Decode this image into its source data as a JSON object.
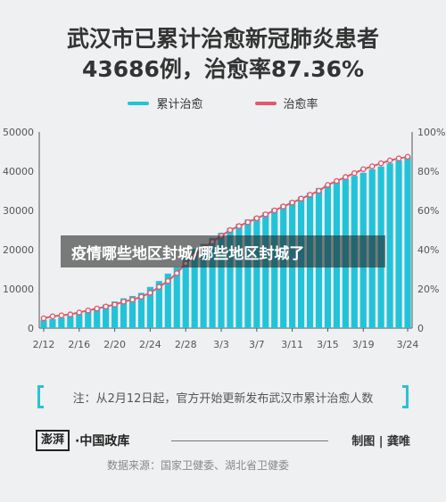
{
  "header": {
    "title_line1": "武汉市已累计治愈新冠肺炎患者",
    "title_line2": "43686例，治愈率87.36%"
  },
  "overlay_caption": "疫情哪些地区封城/哪些地区封城了",
  "note": "注：从2月12日起，官方开始更新发布武汉市累计治愈人数",
  "footer": {
    "logo_mark": "澎湃",
    "logo_text": "·中国政库",
    "credit": "制图 | 龚唯",
    "source": "数据来源：国家卫健委、湖北省卫健委"
  },
  "colors": {
    "bars": "#22c3d9",
    "line": "#e05a6e",
    "bracket": "#2fbfd3"
  },
  "chart_data": {
    "type": "bar",
    "title": "",
    "xlabel": "",
    "ylabel": "",
    "ylim": [
      0,
      50000
    ],
    "y2lim": [
      0,
      100
    ],
    "y_ticks": [
      "0",
      "10000",
      "20000",
      "30000",
      "40000",
      "50000"
    ],
    "y2_ticks": [
      "0",
      "20%",
      "40%",
      "60%",
      "80%",
      "100%"
    ],
    "x_ticks": [
      "2/12",
      "2/16",
      "2/20",
      "2/24",
      "2/28",
      "3/3",
      "3/7",
      "3/11",
      "3/15",
      "3/19",
      "3/24"
    ],
    "x_tick_index": [
      0,
      4,
      8,
      12,
      16,
      20,
      24,
      28,
      32,
      36,
      41
    ],
    "categories": [
      "2/12",
      "2/13",
      "2/14",
      "2/15",
      "2/16",
      "2/17",
      "2/18",
      "2/19",
      "2/20",
      "2/21",
      "2/22",
      "2/23",
      "2/24",
      "2/25",
      "2/26",
      "2/27",
      "2/28",
      "2/29",
      "3/1",
      "3/2",
      "3/3",
      "3/4",
      "3/5",
      "3/6",
      "3/7",
      "3/8",
      "3/9",
      "3/10",
      "3/11",
      "3/12",
      "3/13",
      "3/14",
      "3/15",
      "3/16",
      "3/17",
      "3/18",
      "3/19",
      "3/20",
      "3/21",
      "3/22",
      "3/23",
      "3/24"
    ],
    "series": [
      {
        "name": "累计治愈",
        "type": "bar",
        "values": [
          2000,
          2300,
          2700,
          3100,
          3700,
          4500,
          5200,
          6000,
          6800,
          7600,
          8200,
          9000,
          10500,
          12000,
          13900,
          15500,
          18000,
          20200,
          21500,
          23000,
          24300,
          25500,
          26600,
          27700,
          28500,
          29500,
          30500,
          31500,
          32500,
          33500,
          34500,
          35700,
          36500,
          37300,
          38000,
          38800,
          39600,
          40500,
          41200,
          42000,
          42700,
          43686
        ]
      },
      {
        "name": "治愈率",
        "type": "line",
        "values": [
          5,
          6,
          6.5,
          7,
          8,
          9,
          10,
          11,
          12,
          13.5,
          14.5,
          16,
          18,
          21,
          24,
          28,
          33,
          37,
          41,
          44,
          47,
          50,
          52,
          54,
          56,
          58,
          60,
          62,
          64,
          66,
          68,
          70,
          73,
          75,
          77,
          79,
          81,
          82.5,
          84,
          85.5,
          86.5,
          87.36
        ]
      }
    ],
    "legend_position": "top-center",
    "grid": false
  }
}
